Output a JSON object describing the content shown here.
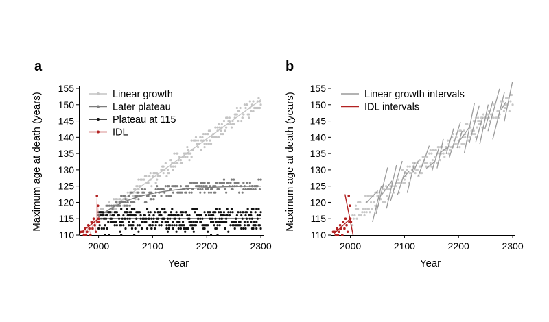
{
  "chart_data": [
    {
      "panel_label": "a",
      "type": "scatter",
      "xlabel": "Year",
      "ylabel": "Maximum age at death (years)",
      "xlim": [
        1965,
        2305
      ],
      "ylim": [
        110,
        155
      ],
      "xticks": [
        2000,
        2100,
        2200,
        2300
      ],
      "yticks": [
        110,
        115,
        120,
        125,
        130,
        135,
        140,
        145,
        150,
        155
      ],
      "legend_position": "top-left",
      "series": [
        {
          "name": "Linear growth",
          "color": "#c4c4c4",
          "model": "linear",
          "x_range": [
            2000,
            2300
          ],
          "y_start": 115.5,
          "y_end": 151.5,
          "spread": 2.5
        },
        {
          "name": "Later plateau",
          "color": "#7d7d7d",
          "model": "plateau_curve",
          "x_range": [
            2000,
            2300
          ],
          "y_start": 115.5,
          "y_end": 125,
          "spread": 2.0
        },
        {
          "name": "Plateau at 115",
          "color": "#111111",
          "model": "flat",
          "x_range": [
            2000,
            2300
          ],
          "y_start": 115,
          "y_end": 115,
          "spread": 3.0
        },
        {
          "name": "IDL",
          "color": "#b22222",
          "points": [
            [
              1968,
              111
            ],
            [
              1971,
              111
            ],
            [
              1973,
              110
            ],
            [
              1975,
              112
            ],
            [
              1977,
              110
            ],
            [
              1979,
              111
            ],
            [
              1981,
              113
            ],
            [
              1983,
              112
            ],
            [
              1985,
              110
            ],
            [
              1987,
              114
            ],
            [
              1989,
              112
            ],
            [
              1991,
              115
            ],
            [
              1993,
              113
            ],
            [
              1995,
              111
            ],
            [
              1997,
              122
            ],
            [
              1998,
              114
            ],
            [
              1999,
              119
            ],
            [
              2000,
              115
            ],
            [
              2001,
              114
            ]
          ],
          "fit": [
            [
              1965,
              110.5
            ],
            [
              2000,
              115
            ]
          ]
        }
      ]
    },
    {
      "panel_label": "b",
      "type": "scatter",
      "xlabel": "Year",
      "ylabel": "Maximum age at death (years)",
      "xlim": [
        1965,
        2305
      ],
      "ylim": [
        110,
        155
      ],
      "xticks": [
        2000,
        2100,
        2200,
        2300
      ],
      "yticks": [
        110,
        115,
        120,
        125,
        130,
        135,
        140,
        145,
        150,
        155
      ],
      "legend_position": "top-left",
      "series": [
        {
          "name": "Linear growth intervals",
          "color": "#9a9a9a",
          "model": "linear_intervals",
          "x_range": [
            2000,
            2300
          ],
          "y_start": 115.5,
          "y_end": 151.5
        },
        {
          "name": "IDL intervals",
          "color": "#b22222",
          "points": [
            [
              1968,
              111
            ],
            [
              1971,
              111
            ],
            [
              1973,
              110
            ],
            [
              1975,
              112
            ],
            [
              1977,
              110
            ],
            [
              1979,
              111
            ],
            [
              1981,
              113
            ],
            [
              1983,
              112
            ],
            [
              1985,
              110
            ],
            [
              1987,
              114
            ],
            [
              1989,
              112
            ],
            [
              1991,
              115
            ],
            [
              1993,
              113
            ],
            [
              1995,
              111
            ],
            [
              1997,
              122
            ],
            [
              1998,
              114
            ],
            [
              1999,
              119
            ],
            [
              2000,
              115
            ],
            [
              2001,
              114
            ]
          ],
          "fit": [
            [
              1970,
              110.5
            ],
            [
              2000,
              115
            ]
          ],
          "fit_steep": [
            [
              1990,
              122.5
            ],
            [
              2005,
              110
            ]
          ]
        }
      ]
    }
  ]
}
